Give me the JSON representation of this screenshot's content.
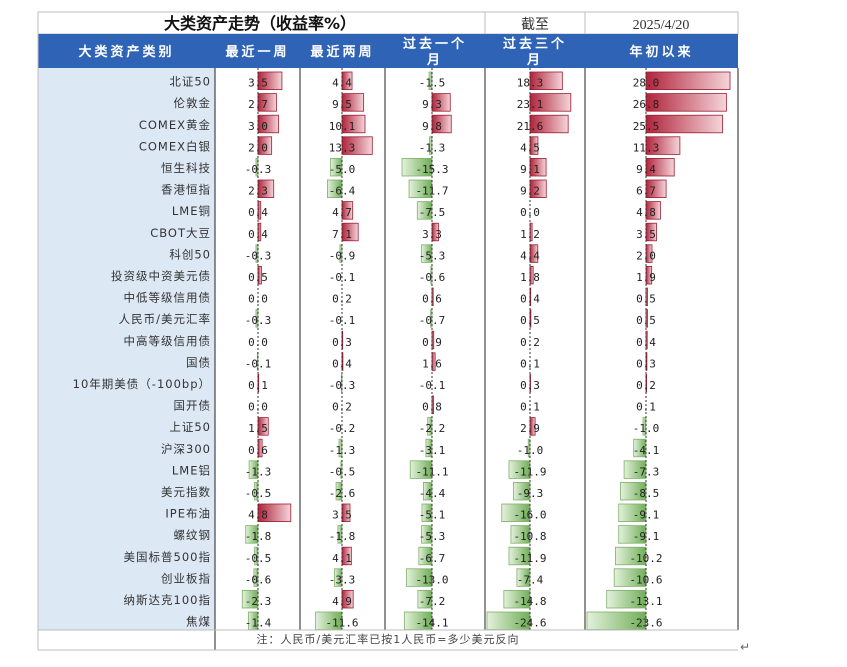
{
  "title": "大类资产走势（收益率%）",
  "asof_label": "截至",
  "asof_date": "2025/4/20",
  "note": "注：人民币/美元汇率已按1人民币=多少美元反向",
  "colors": {
    "header_bg": "#2f63b5",
    "label_bg": "#dde8f5",
    "pos_bar": "#b0233a",
    "neg_bar": "#8fc47a"
  },
  "chart_data": {
    "type": "table",
    "title": "大类资产走势（收益率%）",
    "columns": [
      "大类资产类别",
      "最近一周",
      "最近两周",
      "过去一个月",
      "过去三个月",
      "年初以来"
    ],
    "column_keys": [
      "w1",
      "w2",
      "m1",
      "m3",
      "ytd"
    ],
    "column_max": {
      "w1": 6,
      "w2": 18,
      "m1": 26,
      "m3": 30,
      "ytd": 30
    },
    "rows": [
      {
        "name": "北证50",
        "w1": "3.5",
        "w2": "4.4",
        "m1": "-1.5",
        "m3": "18.3",
        "ytd": "28.0"
      },
      {
        "name": "伦敦金",
        "w1": "2.7",
        "w2": "9.5",
        "m1": "9.3",
        "m3": "23.1",
        "ytd": "26.8"
      },
      {
        "name": "COMEX黄金",
        "w1": "3.0",
        "w2": "10.1",
        "m1": "9.8",
        "m3": "21.6",
        "ytd": "25.5"
      },
      {
        "name": "COMEX白银",
        "w1": "2.0",
        "w2": "13.3",
        "m1": "-1.3",
        "m3": "4.5",
        "ytd": "11.3"
      },
      {
        "name": "恒生科技",
        "w1": "-0.3",
        "w2": "-5.0",
        "m1": "-15.3",
        "m3": "9.1",
        "ytd": "9.4"
      },
      {
        "name": "香港恒指",
        "w1": "2.3",
        "w2": "-6.4",
        "m1": "-11.7",
        "m3": "9.2",
        "ytd": "6.7"
      },
      {
        "name": "LME铜",
        "w1": "0.4",
        "w2": "4.7",
        "m1": "-7.5",
        "m3": "0.0",
        "ytd": "4.8"
      },
      {
        "name": "CBOT大豆",
        "w1": "0.4",
        "w2": "7.1",
        "m1": "3.3",
        "m3": "1.2",
        "ytd": "3.5"
      },
      {
        "name": "科创50",
        "w1": "-0.3",
        "w2": "-0.9",
        "m1": "-5.3",
        "m3": "4.4",
        "ytd": "2.0"
      },
      {
        "name": "投资级中资美元债",
        "w1": "0.5",
        "w2": "-0.1",
        "m1": "-0.6",
        "m3": "1.8",
        "ytd": "1.9"
      },
      {
        "name": "中低等级信用债",
        "w1": "0.0",
        "w2": "0.2",
        "m1": "0.6",
        "m3": "0.4",
        "ytd": "0.5"
      },
      {
        "name": "人民币/美元汇率",
        "w1": "-0.3",
        "w2": "-0.1",
        "m1": "-0.7",
        "m3": "0.5",
        "ytd": "0.5"
      },
      {
        "name": "中高等级信用债",
        "w1": "0.0",
        "w2": "0.3",
        "m1": "0.9",
        "m3": "0.2",
        "ytd": "0.4"
      },
      {
        "name": "国债",
        "w1": "-0.1",
        "w2": "0.4",
        "m1": "1.6",
        "m3": "0.1",
        "ytd": "0.3"
      },
      {
        "name": "10年期美债（-100bp）",
        "w1": "0.1",
        "w2": "-0.3",
        "m1": "-0.1",
        "m3": "0.3",
        "ytd": "0.2"
      },
      {
        "name": "国开债",
        "w1": "0.0",
        "w2": "0.2",
        "m1": "0.8",
        "m3": "0.1",
        "ytd": "0.1"
      },
      {
        "name": "上证50",
        "w1": "1.5",
        "w2": "-0.2",
        "m1": "-2.2",
        "m3": "2.9",
        "ytd": "-1.0"
      },
      {
        "name": "沪深300",
        "w1": "0.6",
        "w2": "-1.3",
        "m1": "-3.1",
        "m3": "-1.0",
        "ytd": "-4.1"
      },
      {
        "name": "LME铝",
        "w1": "-1.3",
        "w2": "-0.5",
        "m1": "-11.1",
        "m3": "-11.9",
        "ytd": "-7.3"
      },
      {
        "name": "美元指数",
        "w1": "-0.5",
        "w2": "-2.6",
        "m1": "-4.4",
        "m3": "-9.3",
        "ytd": "-8.5"
      },
      {
        "name": "IPE布油",
        "w1": "4.8",
        "w2": "3.5",
        "m1": "-5.1",
        "m3": "-16.0",
        "ytd": "-9.1"
      },
      {
        "name": "螺纹钢",
        "w1": "-1.8",
        "w2": "-1.8",
        "m1": "-5.3",
        "m3": "-10.8",
        "ytd": "-9.1"
      },
      {
        "name": "美国标普500指",
        "w1": "-0.5",
        "w2": "4.1",
        "m1": "-6.7",
        "m3": "-11.9",
        "ytd": "-10.2"
      },
      {
        "name": "创业板指",
        "w1": "-0.6",
        "w2": "-3.3",
        "m1": "-13.0",
        "m3": "-7.4",
        "ytd": "-10.6"
      },
      {
        "name": "纳斯达克100指",
        "w1": "-2.3",
        "w2": "4.9",
        "m1": "-7.2",
        "m3": "-14.8",
        "ytd": "-13.1"
      },
      {
        "name": "焦煤",
        "w1": "-1.4",
        "w2": "-11.6",
        "m1": "-14.1",
        "m3": "-24.6",
        "ytd": "-23.6"
      }
    ]
  }
}
